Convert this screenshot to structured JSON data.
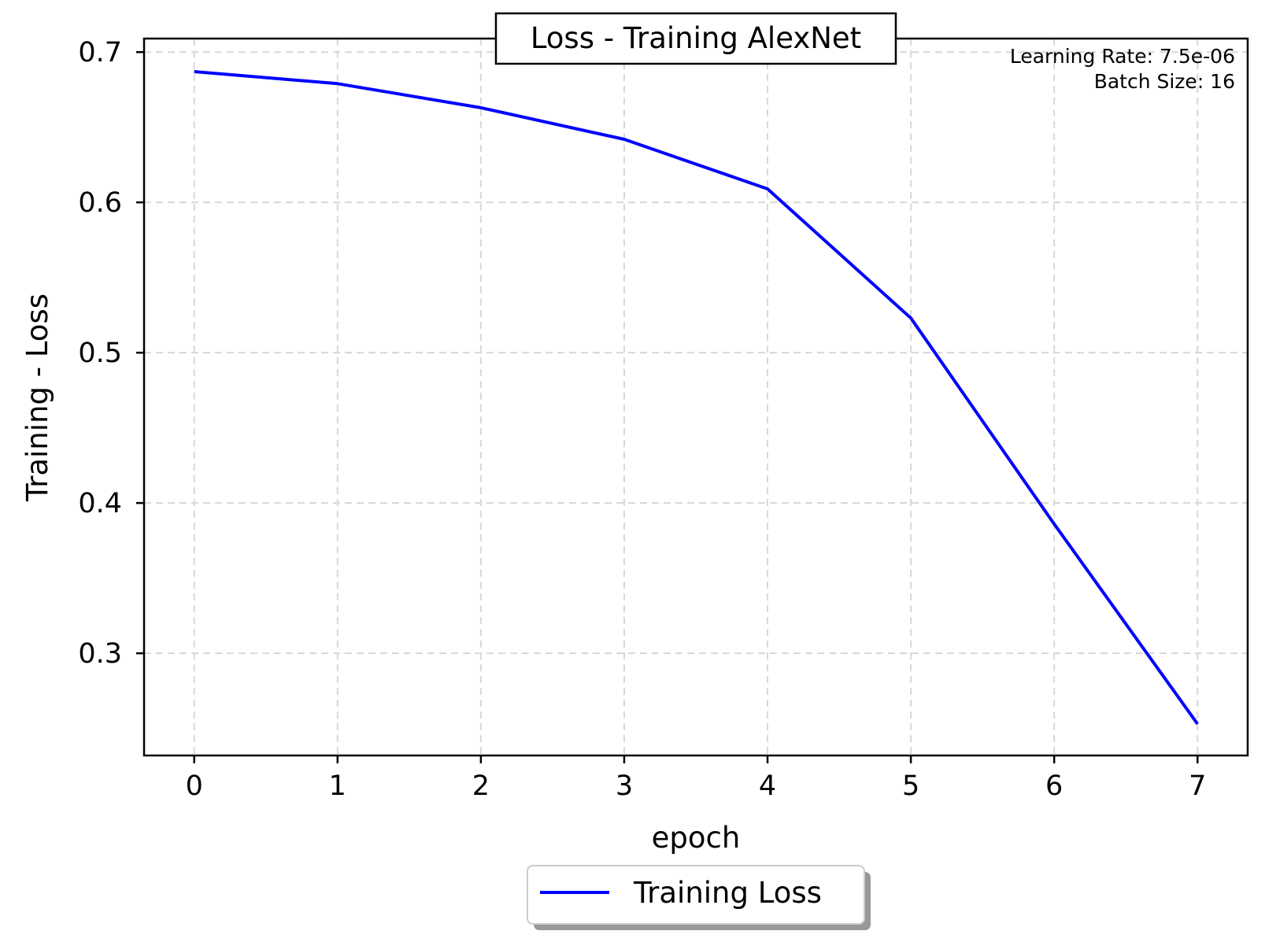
{
  "chart_data": {
    "type": "line",
    "title": "Loss - Training AlexNet",
    "xlabel": "epoch",
    "ylabel": "Training - Loss",
    "x": [
      0,
      1,
      2,
      3,
      4,
      5,
      6,
      7
    ],
    "series": [
      {
        "name": "Training Loss",
        "color": "#0000ff",
        "values": [
          0.687,
          0.679,
          0.663,
          0.642,
          0.609,
          0.523,
          0.386,
          0.253
        ]
      }
    ],
    "xticks": [
      0,
      1,
      2,
      3,
      4,
      5,
      6,
      7
    ],
    "xtick_labels": [
      "0",
      "1",
      "2",
      "3",
      "4",
      "5",
      "6",
      "7"
    ],
    "yticks": [
      0.3,
      0.4,
      0.5,
      0.6,
      0.7
    ],
    "ytick_labels": [
      "0.3",
      "0.4",
      "0.5",
      "0.6",
      "0.7"
    ],
    "xlim": [
      -0.35,
      7.35
    ],
    "ylim": [
      0.232,
      0.709
    ],
    "grid": true,
    "legend_position": "bottom-center (below axes)",
    "annotations": [
      "Learning Rate: 7.5e-06",
      "Batch Size: 16"
    ]
  }
}
